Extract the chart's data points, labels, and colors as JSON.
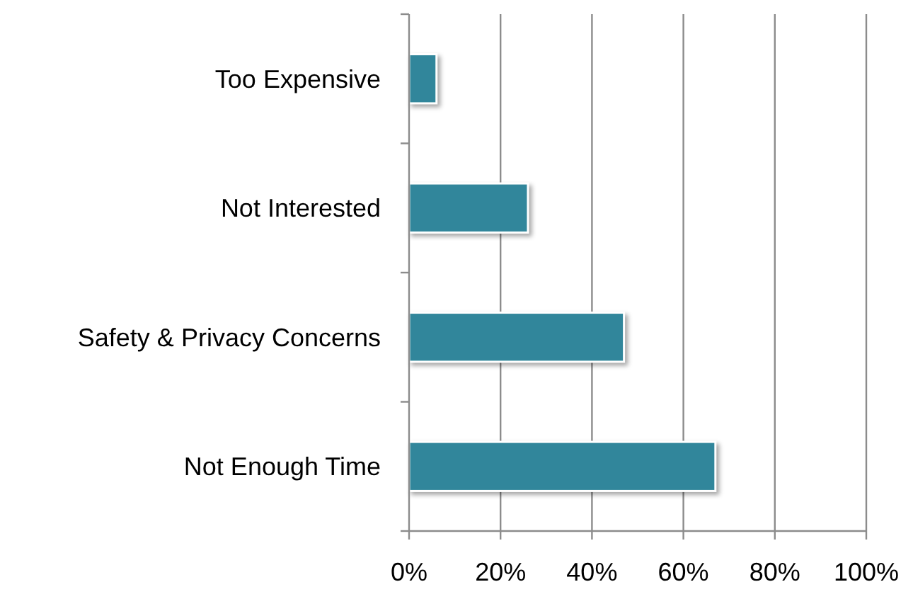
{
  "chart_data": {
    "type": "bar",
    "orientation": "horizontal",
    "categories": [
      "Too Expensive",
      "Not Interested",
      "Safety & Privacy Concerns",
      "Not Enough Time"
    ],
    "values": [
      6,
      26,
      47,
      67
    ],
    "color": "#31869b",
    "xlim": [
      0,
      100
    ],
    "xticks": [
      {
        "value": 0,
        "label": "0%"
      },
      {
        "value": 20,
        "label": "20%"
      },
      {
        "value": 40,
        "label": "40%"
      },
      {
        "value": 60,
        "label": "60%"
      },
      {
        "value": 80,
        "label": "80%"
      },
      {
        "value": 100,
        "label": "100%"
      }
    ],
    "grid": "x"
  }
}
